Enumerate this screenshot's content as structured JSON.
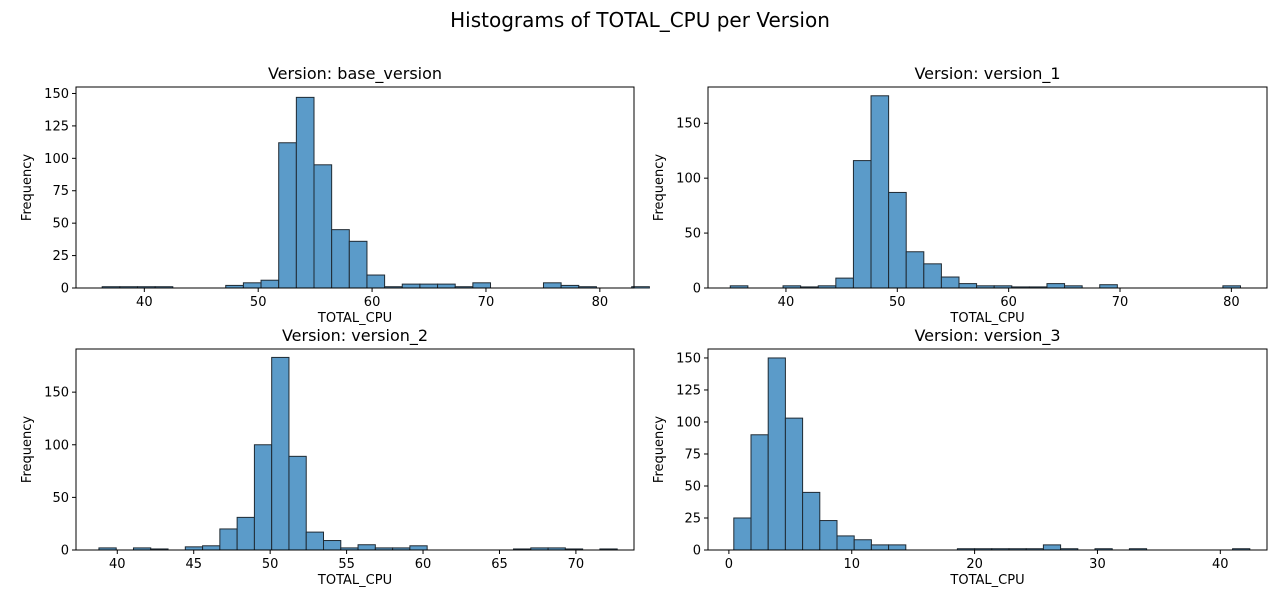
{
  "suptitle": "Histograms of TOTAL_CPU per Version",
  "colors": {
    "bar_fill": "#5b9bc9",
    "bar_edge": "#1f2a33"
  },
  "chart_data": [
    {
      "type": "bar",
      "title": "Version: base_version",
      "xlabel": "TOTAL_CPU",
      "ylabel": "Frequency",
      "bin_start": 36.3,
      "bin_width": 1.55,
      "values": [
        1,
        1,
        1,
        1,
        0,
        0,
        0,
        2,
        4,
        6,
        112,
        147,
        95,
        45,
        36,
        10,
        1,
        3,
        3,
        3,
        1,
        4,
        0,
        0,
        0,
        4,
        2,
        1,
        0,
        0,
        1,
        0
      ],
      "xlim": [
        34.0,
        83.0
      ],
      "ylim": [
        0,
        155
      ],
      "xticks": [
        40,
        50,
        60,
        70,
        80
      ],
      "yticks": [
        0,
        25,
        50,
        75,
        100,
        125,
        150
      ]
    },
    {
      "type": "bar",
      "title": "Version: version_1",
      "xlabel": "TOTAL_CPU",
      "ylabel": "Frequency",
      "bin_start": 35.0,
      "bin_width": 1.58,
      "values": [
        2,
        0,
        0,
        2,
        1,
        2,
        9,
        116,
        175,
        87,
        33,
        22,
        10,
        4,
        2,
        2,
        1,
        1,
        4,
        2,
        0,
        3,
        0,
        0,
        0,
        0,
        0,
        0,
        2,
        0
      ],
      "xlim": [
        33.0,
        83.2
      ],
      "ylim": [
        0,
        183
      ],
      "xticks": [
        40,
        50,
        60,
        70,
        80
      ],
      "yticks": [
        0,
        50,
        100,
        150
      ]
    },
    {
      "type": "bar",
      "title": "Version: version_2",
      "xlabel": "TOTAL_CPU",
      "ylabel": "Frequency",
      "bin_start": 38.8,
      "bin_width": 1.13,
      "values": [
        2,
        0,
        2,
        1,
        0,
        3,
        4,
        20,
        31,
        100,
        183,
        89,
        17,
        9,
        2,
        5,
        2,
        2,
        4,
        0,
        0,
        0,
        0,
        0,
        1,
        2,
        2,
        1,
        0,
        1
      ],
      "xlim": [
        37.3,
        73.8
      ],
      "ylim": [
        0,
        191
      ],
      "xticks": [
        40,
        45,
        50,
        55,
        60,
        65,
        70
      ],
      "yticks": [
        0,
        50,
        100,
        150
      ]
    },
    {
      "type": "bar",
      "title": "Version: version_3",
      "xlabel": "TOTAL_CPU",
      "ylabel": "Frequency",
      "bin_start": 0.4,
      "bin_width": 1.4,
      "values": [
        25,
        90,
        150,
        103,
        45,
        23,
        11,
        8,
        4,
        4,
        0,
        0,
        0,
        1,
        1,
        1,
        1,
        1,
        4,
        1,
        0,
        1,
        0,
        1,
        0,
        0,
        0,
        0,
        0,
        1
      ],
      "xlim": [
        -1.7,
        43.8
      ],
      "ylim": [
        0,
        157
      ],
      "xticks": [
        0,
        10,
        20,
        30,
        40
      ],
      "yticks": [
        0,
        25,
        50,
        75,
        100,
        125,
        150
      ]
    }
  ]
}
